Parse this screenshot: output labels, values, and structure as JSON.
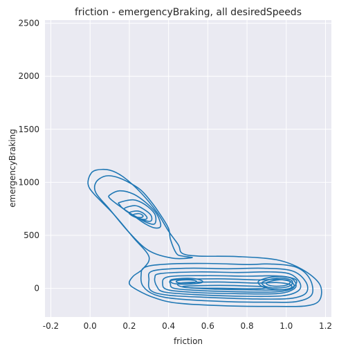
{
  "chart_data": {
    "type": "contour",
    "title": "friction - emergencyBraking, all desiredSpeeds",
    "xlabel": "friction",
    "ylabel": "emergencyBraking",
    "xlim": [
      -0.23,
      1.23
    ],
    "ylim": [
      -270,
      2530
    ],
    "xticks": [
      -0.2,
      0.0,
      0.2,
      0.4,
      0.6,
      0.8,
      1.0,
      1.2
    ],
    "yticks": [
      0,
      500,
      1000,
      1500,
      2000,
      2500
    ],
    "xtick_labels": [
      "-0.2",
      "0.0",
      "0.2",
      "0.4",
      "0.6",
      "0.8",
      "1.0",
      "1.2"
    ],
    "ytick_labels": [
      "0",
      "500",
      "1000",
      "1500",
      "2000",
      "2500"
    ],
    "grid": true,
    "colors": {
      "background": "#eaeaf2",
      "grid": "#ffffff",
      "line": "#1f77b4",
      "text": "#262626"
    },
    "series": [
      {
        "values": [
          {
            "points": [
              [
                0.0,
                1070
              ],
              [
                0.03,
                1115
              ],
              [
                0.1,
                1115
              ],
              [
                0.17,
                1050
              ],
              [
                0.26,
                900
              ],
              [
                0.34,
                720
              ],
              [
                0.4,
                540
              ],
              [
                0.45,
                410
              ],
              [
                0.47,
                330
              ],
              [
                0.55,
                305
              ],
              [
                0.75,
                300
              ],
              [
                0.95,
                270
              ],
              [
                1.08,
                180
              ],
              [
                1.17,
                40
              ],
              [
                1.17,
                -110
              ],
              [
                1.1,
                -165
              ],
              [
                0.95,
                -170
              ],
              [
                0.7,
                -165
              ],
              [
                0.45,
                -140
              ],
              [
                0.33,
                -90
              ],
              [
                0.24,
                -15
              ],
              [
                0.2,
                45
              ],
              [
                0.22,
                115
              ],
              [
                0.27,
                185
              ],
              [
                0.3,
                300
              ],
              [
                0.22,
                480
              ],
              [
                0.12,
                700
              ],
              [
                0.02,
                890
              ],
              [
                -0.01,
                980
              ],
              [
                0.0,
                1070
              ]
            ]
          },
          {
            "points": [
              [
                0.03,
                1000
              ],
              [
                0.08,
                1060
              ],
              [
                0.15,
                1040
              ],
              [
                0.25,
                940
              ],
              [
                0.31,
                820
              ],
              [
                0.36,
                690
              ],
              [
                0.4,
                565
              ],
              [
                0.41,
                460
              ],
              [
                0.44,
                330
              ],
              [
                0.47,
                305
              ],
              [
                0.52,
                290
              ],
              [
                0.42,
                285
              ],
              [
                0.3,
                355
              ],
              [
                0.2,
                525
              ],
              [
                0.1,
                745
              ],
              [
                0.03,
                900
              ],
              [
                0.03,
                1000
              ]
            ]
          },
          {
            "points": [
              [
                0.28,
                200
              ],
              [
                0.4,
                230
              ],
              [
                0.6,
                235
              ],
              [
                0.8,
                225
              ],
              [
                0.92,
                230
              ],
              [
                1.05,
                200
              ],
              [
                1.12,
                90
              ],
              [
                1.13,
                -60
              ],
              [
                1.05,
                -125
              ],
              [
                0.9,
                -130
              ],
              [
                0.7,
                -125
              ],
              [
                0.45,
                -100
              ],
              [
                0.33,
                -60
              ],
              [
                0.27,
                20
              ],
              [
                0.26,
                120
              ],
              [
                0.28,
                200
              ]
            ]
          },
          {
            "points": [
              [
                0.1,
                880
              ],
              [
                0.15,
                920
              ],
              [
                0.22,
                890
              ],
              [
                0.29,
                800
              ],
              [
                0.34,
                700
              ],
              [
                0.36,
                590
              ],
              [
                0.33,
                570
              ],
              [
                0.28,
                610
              ],
              [
                0.21,
                700
              ],
              [
                0.14,
                790
              ],
              [
                0.1,
                850
              ],
              [
                0.1,
                880
              ]
            ]
          },
          {
            "points": [
              [
                0.32,
                165
              ],
              [
                0.5,
                190
              ],
              [
                0.7,
                185
              ],
              [
                0.88,
                190
              ],
              [
                1.03,
                165
              ],
              [
                1.1,
                60
              ],
              [
                1.1,
                -45
              ],
              [
                1.02,
                -95
              ],
              [
                0.85,
                -100
              ],
              [
                0.6,
                -85
              ],
              [
                0.4,
                -65
              ],
              [
                0.31,
                -20
              ],
              [
                0.3,
                80
              ],
              [
                0.32,
                165
              ]
            ]
          },
          {
            "points": [
              [
                0.15,
                810
              ],
              [
                0.22,
                835
              ],
              [
                0.28,
                790
              ],
              [
                0.33,
                700
              ],
              [
                0.33,
                610
              ],
              [
                0.29,
                620
              ],
              [
                0.23,
                680
              ],
              [
                0.17,
                750
              ],
              [
                0.15,
                790
              ],
              [
                0.15,
                810
              ]
            ]
          },
          {
            "points": [
              [
                0.36,
                140
              ],
              [
                0.55,
                155
              ],
              [
                0.75,
                150
              ],
              [
                0.92,
                155
              ],
              [
                1.02,
                135
              ],
              [
                1.07,
                50
              ],
              [
                1.06,
                -25
              ],
              [
                0.98,
                -70
              ],
              [
                0.8,
                -75
              ],
              [
                0.55,
                -60
              ],
              [
                0.38,
                -35
              ],
              [
                0.34,
                20
              ],
              [
                0.33,
                100
              ],
              [
                0.36,
                140
              ]
            ]
          },
          {
            "points": [
              [
                0.18,
                760
              ],
              [
                0.23,
                780
              ],
              [
                0.27,
                750
              ],
              [
                0.31,
                690
              ],
              [
                0.31,
                635
              ],
              [
                0.27,
                645
              ],
              [
                0.22,
                690
              ],
              [
                0.18,
                735
              ],
              [
                0.18,
                760
              ]
            ]
          },
          {
            "points": [
              [
                0.4,
                110
              ],
              [
                0.6,
                120
              ],
              [
                0.8,
                115
              ],
              [
                0.93,
                118
              ],
              [
                1.02,
                100
              ],
              [
                1.05,
                35
              ],
              [
                1.03,
                -15
              ],
              [
                0.95,
                -50
              ],
              [
                0.75,
                -50
              ],
              [
                0.55,
                -40
              ],
              [
                0.4,
                -15
              ],
              [
                0.37,
                40
              ],
              [
                0.4,
                110
              ]
            ]
          },
          {
            "points": [
              [
                0.2,
                715
              ],
              [
                0.24,
                730
              ],
              [
                0.27,
                710
              ],
              [
                0.29,
                670
              ],
              [
                0.28,
                650
              ],
              [
                0.24,
                665
              ],
              [
                0.21,
                690
              ],
              [
                0.2,
                715
              ]
            ]
          },
          {
            "points": [
              [
                0.43,
                80
              ],
              [
                0.65,
                90
              ],
              [
                0.85,
                80
              ],
              [
                0.95,
                85
              ],
              [
                1.02,
                65
              ],
              [
                1.04,
                15
              ],
              [
                1.0,
                -20
              ],
              [
                0.92,
                -35
              ],
              [
                0.75,
                -32
              ],
              [
                0.55,
                -20
              ],
              [
                0.43,
                0
              ],
              [
                0.41,
                40
              ],
              [
                0.43,
                80
              ]
            ]
          },
          {
            "points": [
              [
                0.22,
                695
              ],
              [
                0.25,
                705
              ],
              [
                0.27,
                685
              ],
              [
                0.26,
                668
              ],
              [
                0.23,
                675
              ],
              [
                0.22,
                695
              ]
            ]
          },
          {
            "points": [
              [
                0.46,
                50
              ],
              [
                0.65,
                60
              ],
              [
                0.85,
                50
              ],
              [
                0.95,
                55
              ],
              [
                1.02,
                35
              ],
              [
                1.02,
                0
              ],
              [
                0.96,
                -15
              ],
              [
                0.85,
                -15
              ],
              [
                0.65,
                -8
              ],
              [
                0.48,
                10
              ],
              [
                0.46,
                50
              ]
            ]
          },
          {
            "points": [
              [
                0.42,
                85
              ],
              [
                0.5,
                95
              ],
              [
                0.56,
                80
              ],
              [
                0.57,
                55
              ],
              [
                0.5,
                40
              ],
              [
                0.43,
                45
              ],
              [
                0.41,
                65
              ],
              [
                0.42,
                85
              ]
            ]
          },
          {
            "points": [
              [
                0.45,
                75
              ],
              [
                0.5,
                80
              ],
              [
                0.54,
                70
              ],
              [
                0.53,
                55
              ],
              [
                0.47,
                50
              ],
              [
                0.44,
                60
              ],
              [
                0.45,
                75
              ]
            ]
          },
          {
            "points": [
              [
                0.48,
                20
              ],
              [
                0.66,
                28
              ],
              [
                0.84,
                20
              ],
              [
                0.9,
                12
              ],
              [
                0.86,
                -3
              ],
              [
                0.7,
                0
              ],
              [
                0.52,
                5
              ],
              [
                0.48,
                20
              ]
            ]
          },
          {
            "points": [
              [
                0.86,
                70
              ],
              [
                0.92,
                105
              ],
              [
                0.99,
                110
              ],
              [
                1.05,
                80
              ],
              [
                1.04,
                20
              ],
              [
                0.99,
                -10
              ],
              [
                0.92,
                -5
              ],
              [
                0.87,
                25
              ],
              [
                0.86,
                70
              ]
            ]
          },
          {
            "points": [
              [
                0.88,
                60
              ],
              [
                0.93,
                90
              ],
              [
                0.99,
                95
              ],
              [
                1.03,
                70
              ],
              [
                1.02,
                25
              ],
              [
                0.97,
                5
              ],
              [
                0.91,
                10
              ],
              [
                0.88,
                35
              ],
              [
                0.88,
                60
              ]
            ]
          },
          {
            "points": [
              [
                0.9,
                55
              ],
              [
                0.95,
                78
              ],
              [
                1.0,
                80
              ],
              [
                1.02,
                60
              ],
              [
                1.0,
                30
              ],
              [
                0.95,
                20
              ],
              [
                0.91,
                30
              ],
              [
                0.9,
                55
              ]
            ]
          }
        ]
      }
    ]
  }
}
